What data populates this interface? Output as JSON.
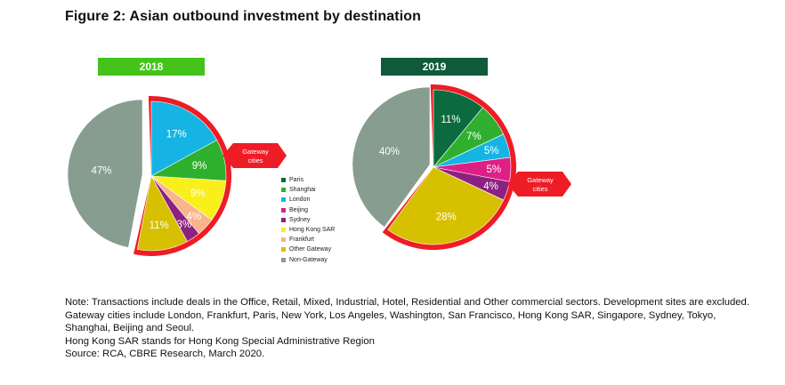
{
  "title": "Figure 2: Asian outbound investment by destination",
  "colors": {
    "Paris": "#0b6b3e",
    "Shanghai": "#2eb02e",
    "London": "#16b4e3",
    "Beijing": "#de1f86",
    "Sydney": "#8c2181",
    "Hong Kong SAR": "#f9ef1a",
    "Frankfurt": "#f9b48a",
    "Other Gateway": "#d7c000",
    "Non-Gateway": "#869d8f",
    "highlight": "#ee1c25",
    "year_2018_box": "#44c41a",
    "year_2019_box": "#0e5a3a"
  },
  "callout": {
    "label_2018": "Gateway cities",
    "label_2019": "Gateway cities"
  },
  "chart_data": [
    {
      "type": "pie",
      "title": "2018",
      "slices": [
        {
          "name": "London",
          "value": 17,
          "label": "17%"
        },
        {
          "name": "Shanghai",
          "value": 9,
          "label": "9%"
        },
        {
          "name": "Hong Kong SAR",
          "value": 9,
          "label": "9%"
        },
        {
          "name": "Frankfurt",
          "value": 4,
          "label": "4%"
        },
        {
          "name": "Sydney",
          "value": 3,
          "label": "3%"
        },
        {
          "name": "Other Gateway",
          "value": 11,
          "label": "11%"
        },
        {
          "name": "Non-Gateway",
          "value": 47,
          "label": "47%"
        }
      ]
    },
    {
      "type": "pie",
      "title": "2019",
      "slices": [
        {
          "name": "Paris",
          "value": 11,
          "label": "11%"
        },
        {
          "name": "Shanghai",
          "value": 7,
          "label": "7%"
        },
        {
          "name": "London",
          "value": 5,
          "label": "5%"
        },
        {
          "name": "Beijing",
          "value": 5,
          "label": "5%"
        },
        {
          "name": "Sydney",
          "value": 4,
          "label": "4%"
        },
        {
          "name": "Other Gateway",
          "value": 28,
          "label": "28%"
        },
        {
          "name": "Non-Gateway",
          "value": 40,
          "label": "40%"
        }
      ]
    }
  ],
  "legend": [
    "Paris",
    "Shanghai",
    "London",
    "Beijing",
    "Sydney",
    "Hong Kong SAR",
    "Frankfurt",
    "Other Gateway",
    "Non-Gateway"
  ],
  "notes": [
    "Note: Transactions include deals in the Office, Retail, Mixed, Industrial, Hotel, Residential and Other commercial sectors. Development sites are excluded.",
    "Gateway cities include London, Frankfurt, Paris, New York, Los Angeles, Washington, San Francisco, Hong Kong SAR, Singapore, Sydney, Tokyo, Shanghai, Beijing and Seoul.",
    "Hong Kong SAR stands for Hong Kong Special Administrative Region",
    "Source: RCA, CBRE Research, March 2020."
  ]
}
